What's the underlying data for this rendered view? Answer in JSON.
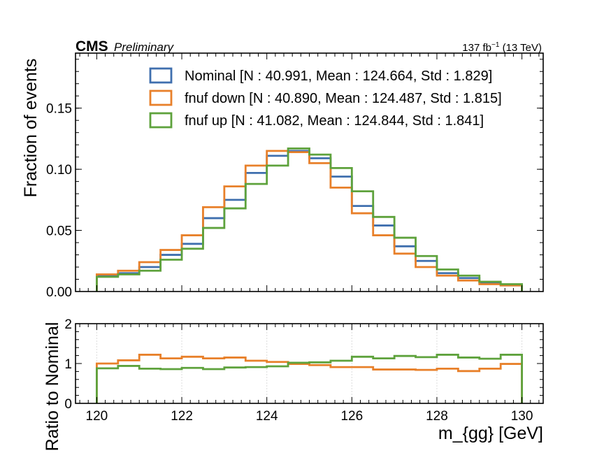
{
  "header": {
    "experiment": "CMS",
    "status": "Preliminary",
    "lumi": "137 fb",
    "lumi_exp": "−1",
    "energy": " (13 TeV)"
  },
  "chart_data": [
    {
      "type": "step",
      "panel": "main",
      "xlabel": "m_{gg} [GeV]",
      "ylabel": "Fraction of events",
      "xlim": [
        119.5,
        130.5
      ],
      "ylim": [
        0,
        0.195
      ],
      "yticks": [
        0.0,
        0.05,
        0.1,
        0.15
      ],
      "ytick_labels": [
        "0.00",
        "0.05",
        "0.10",
        "0.15"
      ],
      "bin_edges": [
        120.0,
        120.5,
        121.0,
        121.5,
        122.0,
        122.5,
        123.0,
        123.5,
        124.0,
        124.5,
        125.0,
        125.5,
        126.0,
        126.5,
        127.0,
        127.5,
        128.0,
        128.5,
        129.0,
        129.5,
        130.0
      ],
      "legend_position": "top-right",
      "series": [
        {
          "name": "Nominal [N : 40.991, Mean : 124.664, Std : 1.829]",
          "color": "#3f6fae",
          "values": [
            0.013,
            0.015,
            0.02,
            0.03,
            0.039,
            0.06,
            0.075,
            0.097,
            0.111,
            0.115,
            0.109,
            0.094,
            0.07,
            0.054,
            0.037,
            0.025,
            0.015,
            0.011,
            0.007,
            0.005
          ]
        },
        {
          "name": "fnuf down [N : 40.890, Mean : 124.487, Std : 1.815]",
          "color": "#e8802a",
          "values": [
            0.014,
            0.017,
            0.024,
            0.034,
            0.046,
            0.069,
            0.086,
            0.103,
            0.115,
            0.114,
            0.105,
            0.085,
            0.064,
            0.046,
            0.031,
            0.02,
            0.013,
            0.009,
            0.006,
            0.005
          ]
        },
        {
          "name": "fnuf up [N : 41.082, Mean : 124.844, Std : 1.841]",
          "color": "#5ea23c",
          "values": [
            0.012,
            0.014,
            0.017,
            0.026,
            0.035,
            0.052,
            0.068,
            0.088,
            0.103,
            0.117,
            0.112,
            0.101,
            0.082,
            0.061,
            0.044,
            0.029,
            0.018,
            0.013,
            0.008,
            0.006
          ]
        }
      ]
    },
    {
      "type": "step",
      "panel": "ratio",
      "ylabel": "Ratio to Nominal",
      "xlabel": "m_{gg} [GeV]",
      "xlim": [
        119.5,
        130.5
      ],
      "ylim": [
        0,
        2
      ],
      "yticks": [
        0,
        1,
        2
      ],
      "ytick_labels": [
        "0",
        "1",
        "2"
      ],
      "xticks": [
        120,
        122,
        124,
        126,
        128,
        130
      ],
      "xtick_labels": [
        "120",
        "122",
        "124",
        "126",
        "128",
        "130"
      ],
      "grid": true,
      "bin_edges": [
        120.0,
        120.5,
        121.0,
        121.5,
        122.0,
        122.5,
        123.0,
        123.5,
        124.0,
        124.5,
        125.0,
        125.5,
        126.0,
        126.5,
        127.0,
        127.5,
        128.0,
        128.5,
        129.0,
        129.5,
        130.0
      ],
      "series": [
        {
          "name": "fnuf down",
          "color": "#e8802a",
          "values": [
            1.0,
            1.08,
            1.22,
            1.13,
            1.17,
            1.13,
            1.15,
            1.07,
            1.04,
            0.99,
            0.96,
            0.91,
            0.91,
            0.85,
            0.85,
            0.84,
            0.87,
            0.81,
            0.87,
            0.99
          ]
        },
        {
          "name": "fnuf up",
          "color": "#5ea23c",
          "values": [
            0.88,
            0.94,
            0.87,
            0.86,
            0.89,
            0.86,
            0.9,
            0.91,
            0.93,
            1.02,
            1.03,
            1.07,
            1.17,
            1.13,
            1.19,
            1.16,
            1.22,
            1.15,
            1.12,
            1.22
          ]
        }
      ]
    }
  ]
}
